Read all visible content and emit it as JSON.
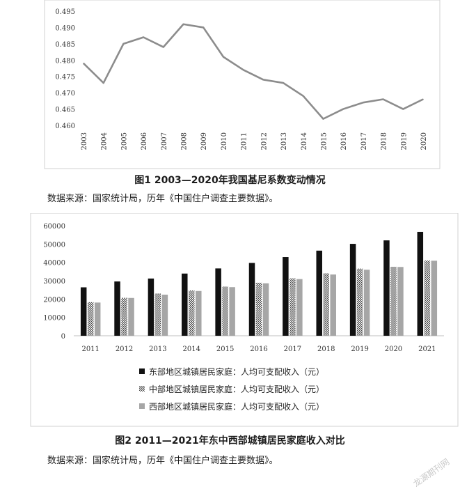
{
  "figures": [
    {
      "caption": "图1  2003—2020年我国基尼系数变动情况",
      "source": "数据来源：国家统计局，历年《中国住户调查主要数据》。"
    },
    {
      "caption": "图2  2011—2021年东中西部城镇居民家庭收入对比",
      "source": "数据来源：国家统计局，历年《中国住户调查主要数据》。"
    }
  ],
  "watermark": "龙源期刊网",
  "chart_data": [
    {
      "type": "line",
      "title": "",
      "x": [
        "2003",
        "2004",
        "2005",
        "2006",
        "2007",
        "2008",
        "2009",
        "2010",
        "2011",
        "2012",
        "2013",
        "2014",
        "2015",
        "2016",
        "2017",
        "2018",
        "2019",
        "2020"
      ],
      "series": [
        {
          "values": [
            0.479,
            0.473,
            0.485,
            0.487,
            0.484,
            0.491,
            0.49,
            0.481,
            0.477,
            0.474,
            0.473,
            0.469,
            0.462,
            0.465,
            0.467,
            0.468,
            0.465,
            0.468
          ],
          "color": "#8c8c8c"
        }
      ],
      "ylim": [
        0.46,
        0.495
      ],
      "yticks": [
        "0.460",
        "0.465",
        "0.470",
        "0.475",
        "0.480",
        "0.485",
        "0.490",
        "0.495"
      ],
      "xlabel": "",
      "ylabel": "",
      "grid": false
    },
    {
      "type": "bar",
      "title": "",
      "categories": [
        "2011",
        "2012",
        "2013",
        "2014",
        "2015",
        "2016",
        "2017",
        "2018",
        "2019",
        "2020",
        "2021"
      ],
      "series": [
        {
          "name": "东部地区城镇居民家庭：人均可支配收入（元）",
          "values": [
            26400,
            29600,
            31200,
            33900,
            36700,
            39700,
            42900,
            46400,
            50100,
            52000,
            56600
          ],
          "color": "#111111",
          "pattern": "solid"
        },
        {
          "name": "中部地区城镇居民家庭：人均可支配收入（元）",
          "values": [
            18300,
            20700,
            23000,
            24700,
            26800,
            28900,
            31300,
            34000,
            36600,
            37600,
            41000
          ],
          "color": "#555555",
          "pattern": "checker"
        },
        {
          "name": "西部地区城镇居民家庭：人均可支配收入（元）",
          "values": [
            18100,
            20600,
            22400,
            24400,
            26500,
            28600,
            30900,
            33400,
            36000,
            37500,
            40900
          ],
          "color": "#a6a6a6",
          "pattern": "solid"
        }
      ],
      "ylim": [
        0,
        60000
      ],
      "yticks": [
        "0",
        "10000",
        "20000",
        "30000",
        "40000",
        "50000",
        "60000"
      ],
      "legend": "bottom",
      "grid": false
    }
  ]
}
